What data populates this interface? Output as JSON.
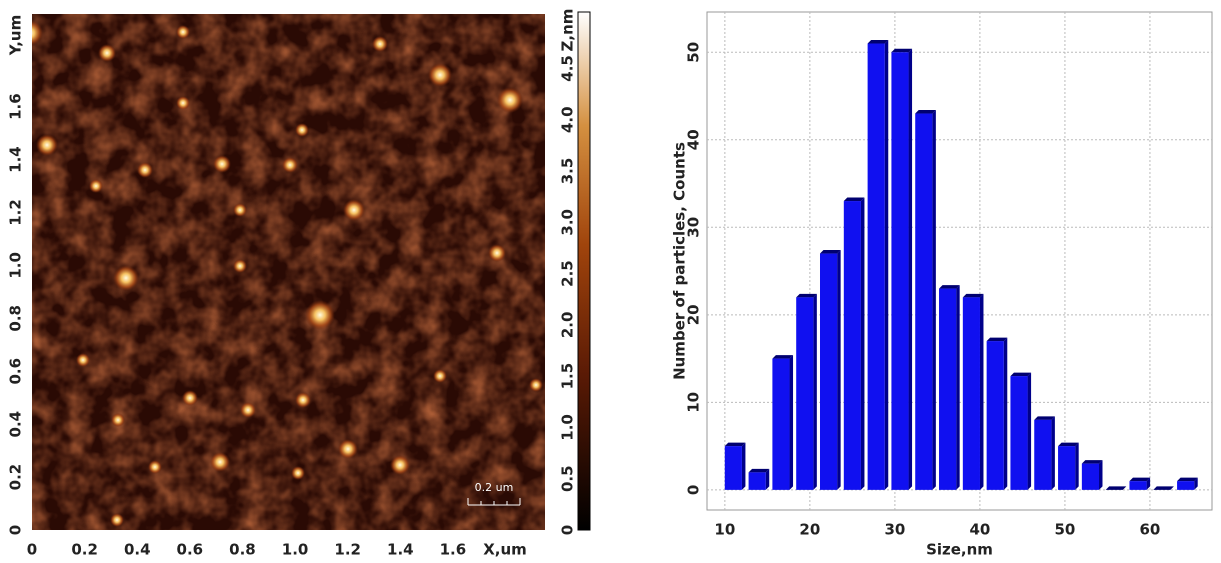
{
  "chart_data": [
    {
      "type": "image",
      "x_label": "X,um",
      "y_label": "Y,um",
      "xlim": [
        0,
        1.95
      ],
      "ylim": [
        0,
        1.95
      ],
      "xticks": [
        0,
        0.2,
        0.4,
        0.6,
        0.8,
        {
          "value": 1,
          "label": "1.0"
        },
        1.2,
        1.4,
        1.6
      ],
      "yticks": [
        0,
        0.2,
        0.4,
        0.6,
        0.8,
        {
          "value": 1,
          "label": "1.0"
        },
        1.2,
        1.4,
        1.6
      ],
      "colorbar": {
        "label": "Z,nm",
        "lim": [
          0,
          5.05
        ],
        "ticks": [
          0,
          0.5,
          {
            "value": 1,
            "label": "1.0"
          },
          1.5,
          {
            "value": 2,
            "label": "2.0"
          },
          2.5,
          {
            "value": 3,
            "label": "3.0"
          },
          3.5,
          {
            "value": 4,
            "label": "4.0"
          },
          4.5
        ]
      },
      "scale_bar": "0.2 um"
    },
    {
      "type": "histogram",
      "x_label": "Size,nm",
      "y_label": "Number of particles, Counts",
      "bins": [
        9.6,
        12.4,
        15.2,
        18,
        20.8,
        23.6,
        26.4,
        29.2,
        32,
        34.8,
        37.6,
        40.4,
        43.2,
        46,
        48.8,
        51.6,
        54.4,
        57.2,
        60,
        62.8,
        65.6
      ],
      "values": [
        5,
        2,
        15,
        22,
        27,
        33,
        51,
        50,
        43,
        23,
        22,
        17,
        13,
        8,
        5,
        3,
        0,
        1,
        0,
        1
      ],
      "color": "#1010f0",
      "xlim": [
        7.9,
        67.3
      ],
      "ylim": [
        -2.3,
        54.6
      ],
      "xticks": [
        10,
        20,
        30,
        40,
        50,
        60
      ],
      "yticks": [
        0,
        10,
        20,
        30,
        40,
        50
      ],
      "grid": true
    }
  ]
}
